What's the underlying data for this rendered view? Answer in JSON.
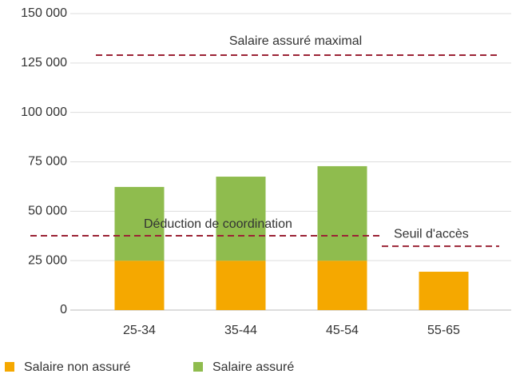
{
  "chart_data": {
    "type": "stacked-bar",
    "categories": [
      "25-34",
      "35-44",
      "45-54",
      "55-65"
    ],
    "series": [
      {
        "name": "Salaire non assuré",
        "color": "#f5a800",
        "values": [
          25000,
          25000,
          25000,
          19400
        ]
      },
      {
        "name": "Salaire assuré",
        "color": "#8fbc4e",
        "values": [
          37300,
          42500,
          47800,
          0
        ]
      }
    ],
    "ylim": [
      0,
      150000
    ],
    "yticks": [
      0,
      {
        "value": 25000,
        "label": "25 000"
      },
      {
        "value": 50000,
        "label": "50 000"
      },
      {
        "value": 75000,
        "label": "75 000"
      },
      {
        "value": 100000,
        "label": "100 000"
      },
      {
        "value": 125000,
        "label": "125 000"
      },
      {
        "value": 150000,
        "label": "150 000"
      }
    ],
    "grid": true,
    "reference_lines": [
      {
        "label": "Salaire assuré maximal",
        "value": 129000,
        "color": "#9b2335"
      },
      {
        "label": "Déduction de coordination",
        "value": 37600,
        "color": "#9b2335"
      },
      {
        "label": "Seuil d'accès",
        "value": 32300,
        "color": "#9b2335"
      }
    ],
    "legend": "bottom-left"
  }
}
